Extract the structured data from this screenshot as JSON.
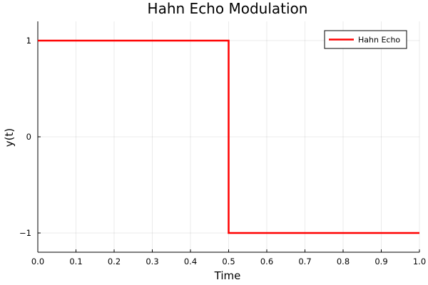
{
  "chart_data": {
    "type": "line",
    "title": "Hahn Echo Modulation",
    "xlabel": "Time",
    "ylabel": "y(t)",
    "xlim": [
      0.0,
      1.0
    ],
    "ylim": [
      -1.2,
      1.2
    ],
    "xticks": [
      0.0,
      0.1,
      0.2,
      0.3,
      0.4,
      0.5,
      0.6,
      0.7,
      0.8,
      0.9,
      1.0
    ],
    "xtick_labels": [
      "0.0",
      "0.1",
      "0.2",
      "0.3",
      "0.4",
      "0.5",
      "0.6",
      "0.7",
      "0.8",
      "0.9",
      "1.0"
    ],
    "yticks": [
      -1,
      0,
      1
    ],
    "ytick_labels": [
      "−1",
      "0",
      "1"
    ],
    "grid": true,
    "legend_position": "top-right",
    "series": [
      {
        "name": "Hahn Echo",
        "color": "#ff0000",
        "x": [
          0.0,
          0.5,
          0.5,
          1.0
        ],
        "y": [
          1,
          1,
          -1,
          -1
        ]
      }
    ]
  }
}
